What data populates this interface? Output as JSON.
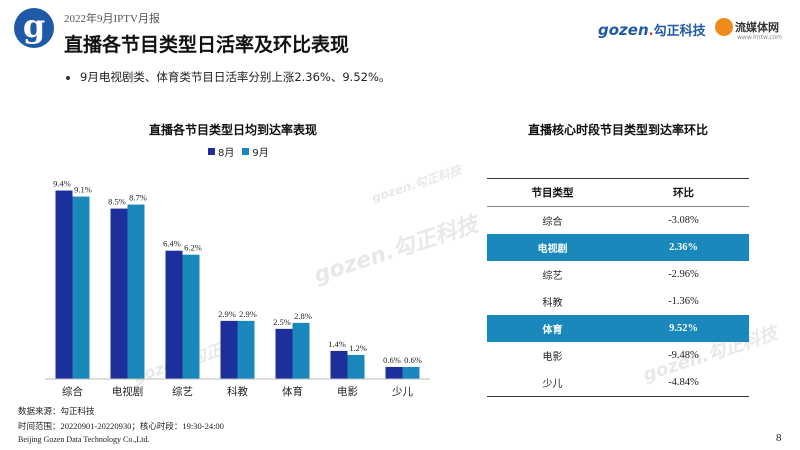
{
  "header": {
    "logo_letter": "g",
    "report_label": "2022年9月IPTV月报",
    "title": "直播各节目类型日活率及环比表现",
    "gozen_logo": {
      "en": "gozen",
      "cn": "勾正科技"
    },
    "lmt_logo": {
      "name": "流媒体网",
      "url": "www.lmtw.com"
    }
  },
  "bullet": "9月电视剧类、体育类节目日活率分别上涨2.36%、9.52%。",
  "watermark_text": "gozen.勾正科技",
  "colors": {
    "aug": "#1c2f9c",
    "sep": "#1a88ba",
    "highlight": "#1a88ba",
    "brand": "#1f5aa8"
  },
  "chart_data": [
    {
      "type": "bar",
      "title": "直播各节目类型日均到达率表现",
      "categories": [
        "综合",
        "电视剧",
        "综艺",
        "科教",
        "体育",
        "电影",
        "少儿"
      ],
      "series": [
        {
          "name": "8月",
          "values": [
            9.4,
            8.5,
            6.4,
            2.9,
            2.5,
            1.4,
            0.6
          ],
          "labels": [
            "9.4%",
            "8.5%",
            "6.4%",
            "2.9%",
            "2.5%",
            "1.4%",
            "0.6%"
          ]
        },
        {
          "name": "9月",
          "values": [
            9.1,
            8.7,
            6.2,
            2.9,
            2.8,
            1.2,
            0.6
          ],
          "labels": [
            "9.1%",
            "8.7%",
            "6.2%",
            "2.9%",
            "2.8%",
            "1.2%",
            "0.6%"
          ]
        }
      ],
      "ylim": [
        0,
        10
      ],
      "legend": "top",
      "grid": false
    },
    {
      "type": "table",
      "title": "直播核心时段节目类型到达率环比",
      "columns": [
        "节目类型",
        "环比"
      ],
      "rows": [
        {
          "type": "综合",
          "ratio": "-3.08%",
          "highlight": false
        },
        {
          "type": "电视剧",
          "ratio": "2.36%",
          "highlight": true
        },
        {
          "type": "综艺",
          "ratio": "-2.96%",
          "highlight": false
        },
        {
          "type": "科教",
          "ratio": "-1.36%",
          "highlight": false
        },
        {
          "type": "体育",
          "ratio": "9.52%",
          "highlight": true
        },
        {
          "type": "电影",
          "ratio": "-9.48%",
          "highlight": false
        },
        {
          "type": "少儿",
          "ratio": "-4.84%",
          "highlight": false
        }
      ]
    }
  ],
  "footer": {
    "source_label": "数据来源：",
    "source": "勾正科技",
    "period_label": "时间范围：",
    "period": "20220901-20220930",
    "core_label": "；核心时段：",
    "core": "19:30-24:00",
    "company": "Beijing Gozen Data Technology Co.,Ltd.",
    "page_number": "8"
  }
}
